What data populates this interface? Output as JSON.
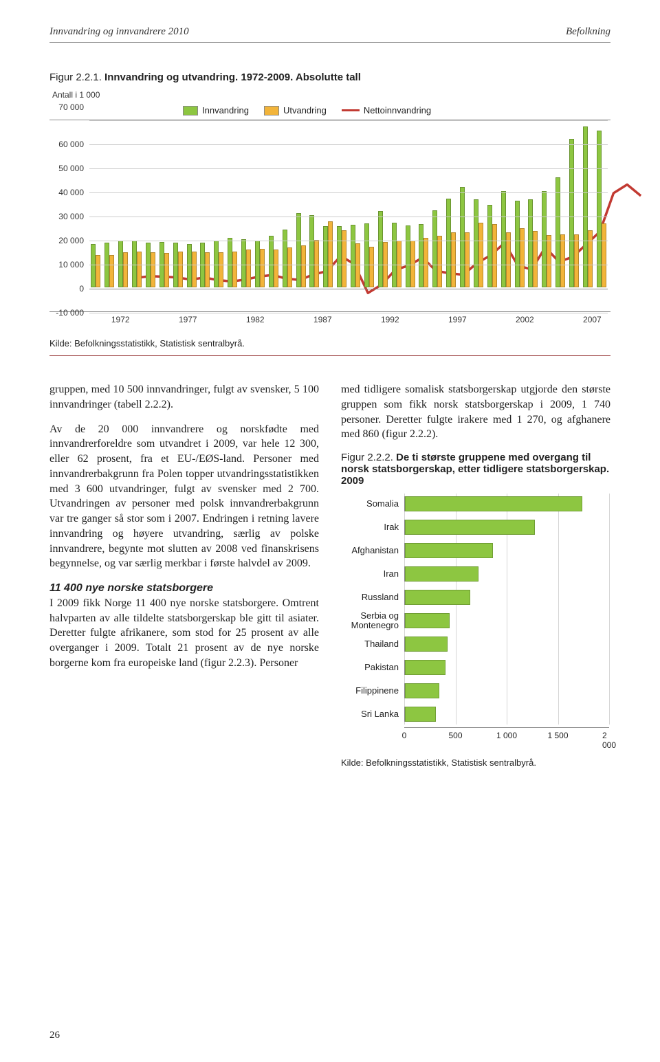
{
  "header": {
    "left": "Innvandring og innvandrere 2010",
    "right": "Befolkning"
  },
  "figure1": {
    "caption_no": "Figur 2.2.1.",
    "caption_title": " Innvandring og utvandring. 1972-2009. Absolutte tall",
    "y_axis_title_line1": "Antall i 1 000",
    "y_axis_title_line2": "70 000",
    "type": "grouped-bar-with-line",
    "legend": [
      {
        "label": "Innvandring",
        "color": "#8dc641"
      },
      {
        "label": "Utvandring",
        "color": "#f2b43a"
      },
      {
        "label": "Nettoinnvandring",
        "color": "#c23a32",
        "kind": "line"
      }
    ],
    "ylim": [
      -10000,
      70000
    ],
    "ytick_step": 10000,
    "yticks": [
      "70 000",
      "60 000",
      "50 000",
      "40 000",
      "30 000",
      "20 000",
      "10 000",
      "0",
      "-10 000"
    ],
    "xticks": [
      {
        "label": "1972",
        "pct": 6
      },
      {
        "label": "1977",
        "pct": 19
      },
      {
        "label": "1982",
        "pct": 32
      },
      {
        "label": "1987",
        "pct": 45
      },
      {
        "label": "1992",
        "pct": 58
      },
      {
        "label": "1997",
        "pct": 71
      },
      {
        "label": "2002",
        "pct": 84
      },
      {
        "label": "2007",
        "pct": 97
      }
    ],
    "years": [
      1972,
      1973,
      1974,
      1975,
      1976,
      1977,
      1978,
      1979,
      1980,
      1981,
      1982,
      1983,
      1984,
      1985,
      1986,
      1987,
      1988,
      1989,
      1990,
      1991,
      1992,
      1993,
      1994,
      1995,
      1996,
      1997,
      1998,
      1999,
      2000,
      2001,
      2002,
      2003,
      2004,
      2005,
      2006,
      2007,
      2008,
      2009
    ],
    "innvandring": [
      18000,
      18500,
      19500,
      19500,
      18500,
      19000,
      18500,
      18000,
      18500,
      19500,
      20500,
      20000,
      19500,
      21500,
      24000,
      31000,
      30000,
      25500,
      25500,
      26000,
      26500,
      31800,
      26900,
      25700,
      26400,
      32000,
      36800,
      41800,
      36500,
      34300,
      40100,
      35900,
      36500,
      40100,
      45800,
      61800,
      66900,
      65200
    ],
    "utvandring": [
      13500,
      13300,
      14500,
      14800,
      14700,
      14400,
      14900,
      15000,
      14700,
      14500,
      14800,
      15800,
      15900,
      15600,
      16700,
      17400,
      19800,
      27300,
      23800,
      18200,
      16800,
      18900,
      19500,
      19300,
      20600,
      21300,
      22900,
      22800,
      26900,
      26300,
      22900,
      24700,
      23300,
      21700,
      22100,
      22100,
      23600,
      26600
    ],
    "netto": [
      4500,
      5200,
      5000,
      4700,
      3800,
      4600,
      3600,
      3000,
      3800,
      5000,
      5700,
      4200,
      3600,
      5900,
      7300,
      13600,
      10200,
      -1800,
      1700,
      7800,
      9700,
      12900,
      7400,
      6400,
      5800,
      10700,
      13900,
      19000,
      9600,
      8000,
      17200,
      11200,
      13200,
      18400,
      23700,
      39700,
      43300,
      38600
    ],
    "colors": {
      "innvandring": "#8dc641",
      "utvandring": "#f2b43a",
      "netto": "#c23a32",
      "grid": "#cccccc",
      "axis": "#888888",
      "background": "#ffffff"
    },
    "source": "Kilde: Befolkningsstatistikk, Statistisk sentralbyrå."
  },
  "left_column": {
    "p1": "gruppen, med 10 500 innvandringer, fulgt av svensker, 5 100 innvandringer (tabell 2.2.2).",
    "p2": "Av de 20 000 innvandrere og norskfødte med innvandrerforeldre som utvandret i 2009, var hele 12 300, eller 62 prosent, fra et EU-/EØS-land. Personer med innvandrerbakgrunn fra Polen topper utvandringsstatistikken med 3 600 utvandringer, fulgt av svensker med 2 700. Utvandringen av personer med polsk innvandrerbakgrunn var tre ganger så stor som i 2007. Endringen i retning lavere innvandring og høyere utvandring, særlig av polske innvandrere, begynte mot slutten av 2008 ved finanskrisens begynnelse, og var særlig merkbar i første halvdel av 2009.",
    "subhead": "11 400 nye norske statsborgere",
    "p3": "I 2009 fikk Norge 11 400 nye norske statsborgere. Omtrent halvparten av alle tildelte statsborgerskap ble gitt til asiater. Deretter fulgte afrikanere, som stod for 25 prosent av alle overganger i 2009. Totalt 21 prosent av de nye norske borgerne kom fra europeiske land (figur 2.2.3). Personer"
  },
  "right_column": {
    "p1": "med tidligere somalisk statsborgerskap utgjorde den største gruppen som fikk norsk statsborgerskap i 2009, 1 740 personer. Deretter fulgte irakere med 1 270, og afghanere med 860 (figur 2.2.2)."
  },
  "figure2": {
    "caption_no": "Figur 2.2.2.",
    "caption_title": " De ti største gruppene med overgang til norsk statsborgerskap, etter tidligere statsborgerskap. 2009",
    "type": "horizontal-bar",
    "bar_color": "#8dc641",
    "grid_color": "#d5d5d5",
    "axis_color": "#888888",
    "xlim": [
      0,
      2000
    ],
    "xtick_step": 500,
    "xticks": [
      "0",
      "500",
      "1 000",
      "1 500",
      "2 000"
    ],
    "categories": [
      {
        "label": "Somalia",
        "value": 1740
      },
      {
        "label": "Irak",
        "value": 1270
      },
      {
        "label": "Afghanistan",
        "value": 860
      },
      {
        "label": "Iran",
        "value": 720
      },
      {
        "label": "Russland",
        "value": 640
      },
      {
        "label": "Serbia og Montenegro",
        "value": 440
      },
      {
        "label": "Thailand",
        "value": 420
      },
      {
        "label": "Pakistan",
        "value": 400
      },
      {
        "label": "Filippinene",
        "value": 340
      },
      {
        "label": "Sri Lanka",
        "value": 300
      }
    ],
    "source": "Kilde: Befolkningsstatistikk, Statistisk sentralbyrå."
  },
  "page_number": "26"
}
